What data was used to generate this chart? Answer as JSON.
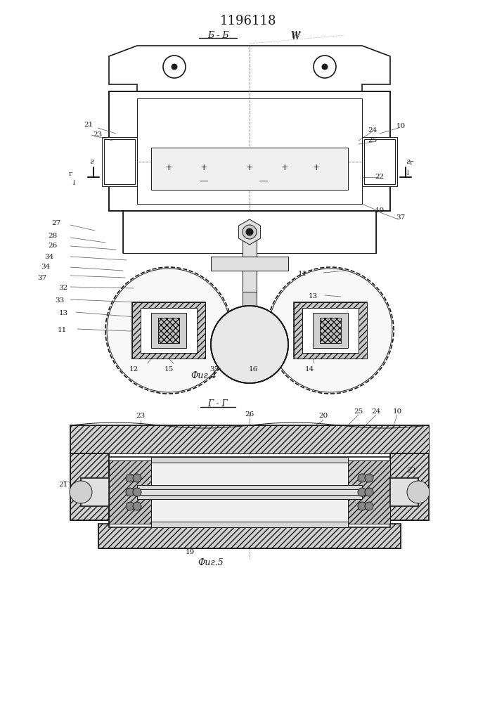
{
  "title": "1196118",
  "fig4_label": "Б - Б",
  "fig5_label": "Г - Г",
  "fig4_caption": "Фиг.4",
  "fig5_caption": "Фиг.5",
  "bg_color": "#f5f5f0",
  "line_color": "#1a1a1a",
  "hatch_color": "#333333",
  "fig_label_W": "W",
  "fig_label_r": "Г",
  "label_r_left": "г",
  "label_r_right": "г"
}
